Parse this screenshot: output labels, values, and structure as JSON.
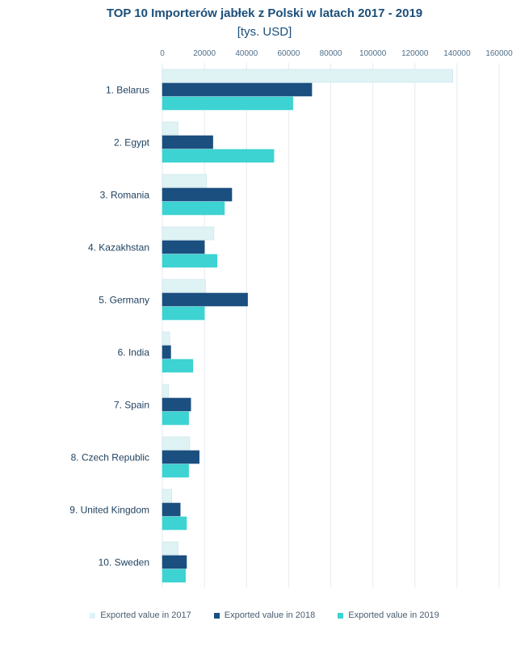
{
  "chart_data": {
    "type": "bar",
    "orientation": "horizontal",
    "title": "TOP 10 Importerów jabłek z Polski w latach 2017 - 2019",
    "subtitle": "[tys. USD]",
    "categories": [
      "1. Belarus",
      "2. Egypt",
      "3. Romania",
      "4. Kazakhstan",
      "5. Germany",
      "6. India",
      "7. Spain",
      "8. Czech Republic",
      "9. United Kingdom",
      "10. Sweden"
    ],
    "series": [
      {
        "name": "Exported value in 2017",
        "color": "#dff3f4",
        "values": [
          138000,
          7500,
          21000,
          24500,
          20500,
          3500,
          3000,
          13000,
          4500,
          7500
        ]
      },
      {
        "name": "Exported value in 2018",
        "color": "#1a4f80",
        "values": [
          71000,
          24000,
          33000,
          20000,
          40500,
          4000,
          13500,
          17500,
          8500,
          11500
        ]
      },
      {
        "name": "Exported value in 2019",
        "color": "#3cd3d2",
        "values": [
          62000,
          53000,
          29500,
          26000,
          20000,
          14500,
          12500,
          12500,
          11500,
          11000
        ]
      }
    ],
    "xlim": [
      0,
      160000
    ],
    "xticks": [
      0,
      20000,
      40000,
      60000,
      80000,
      100000,
      120000,
      140000,
      160000
    ],
    "grid": true,
    "legend_position": "bottom"
  }
}
